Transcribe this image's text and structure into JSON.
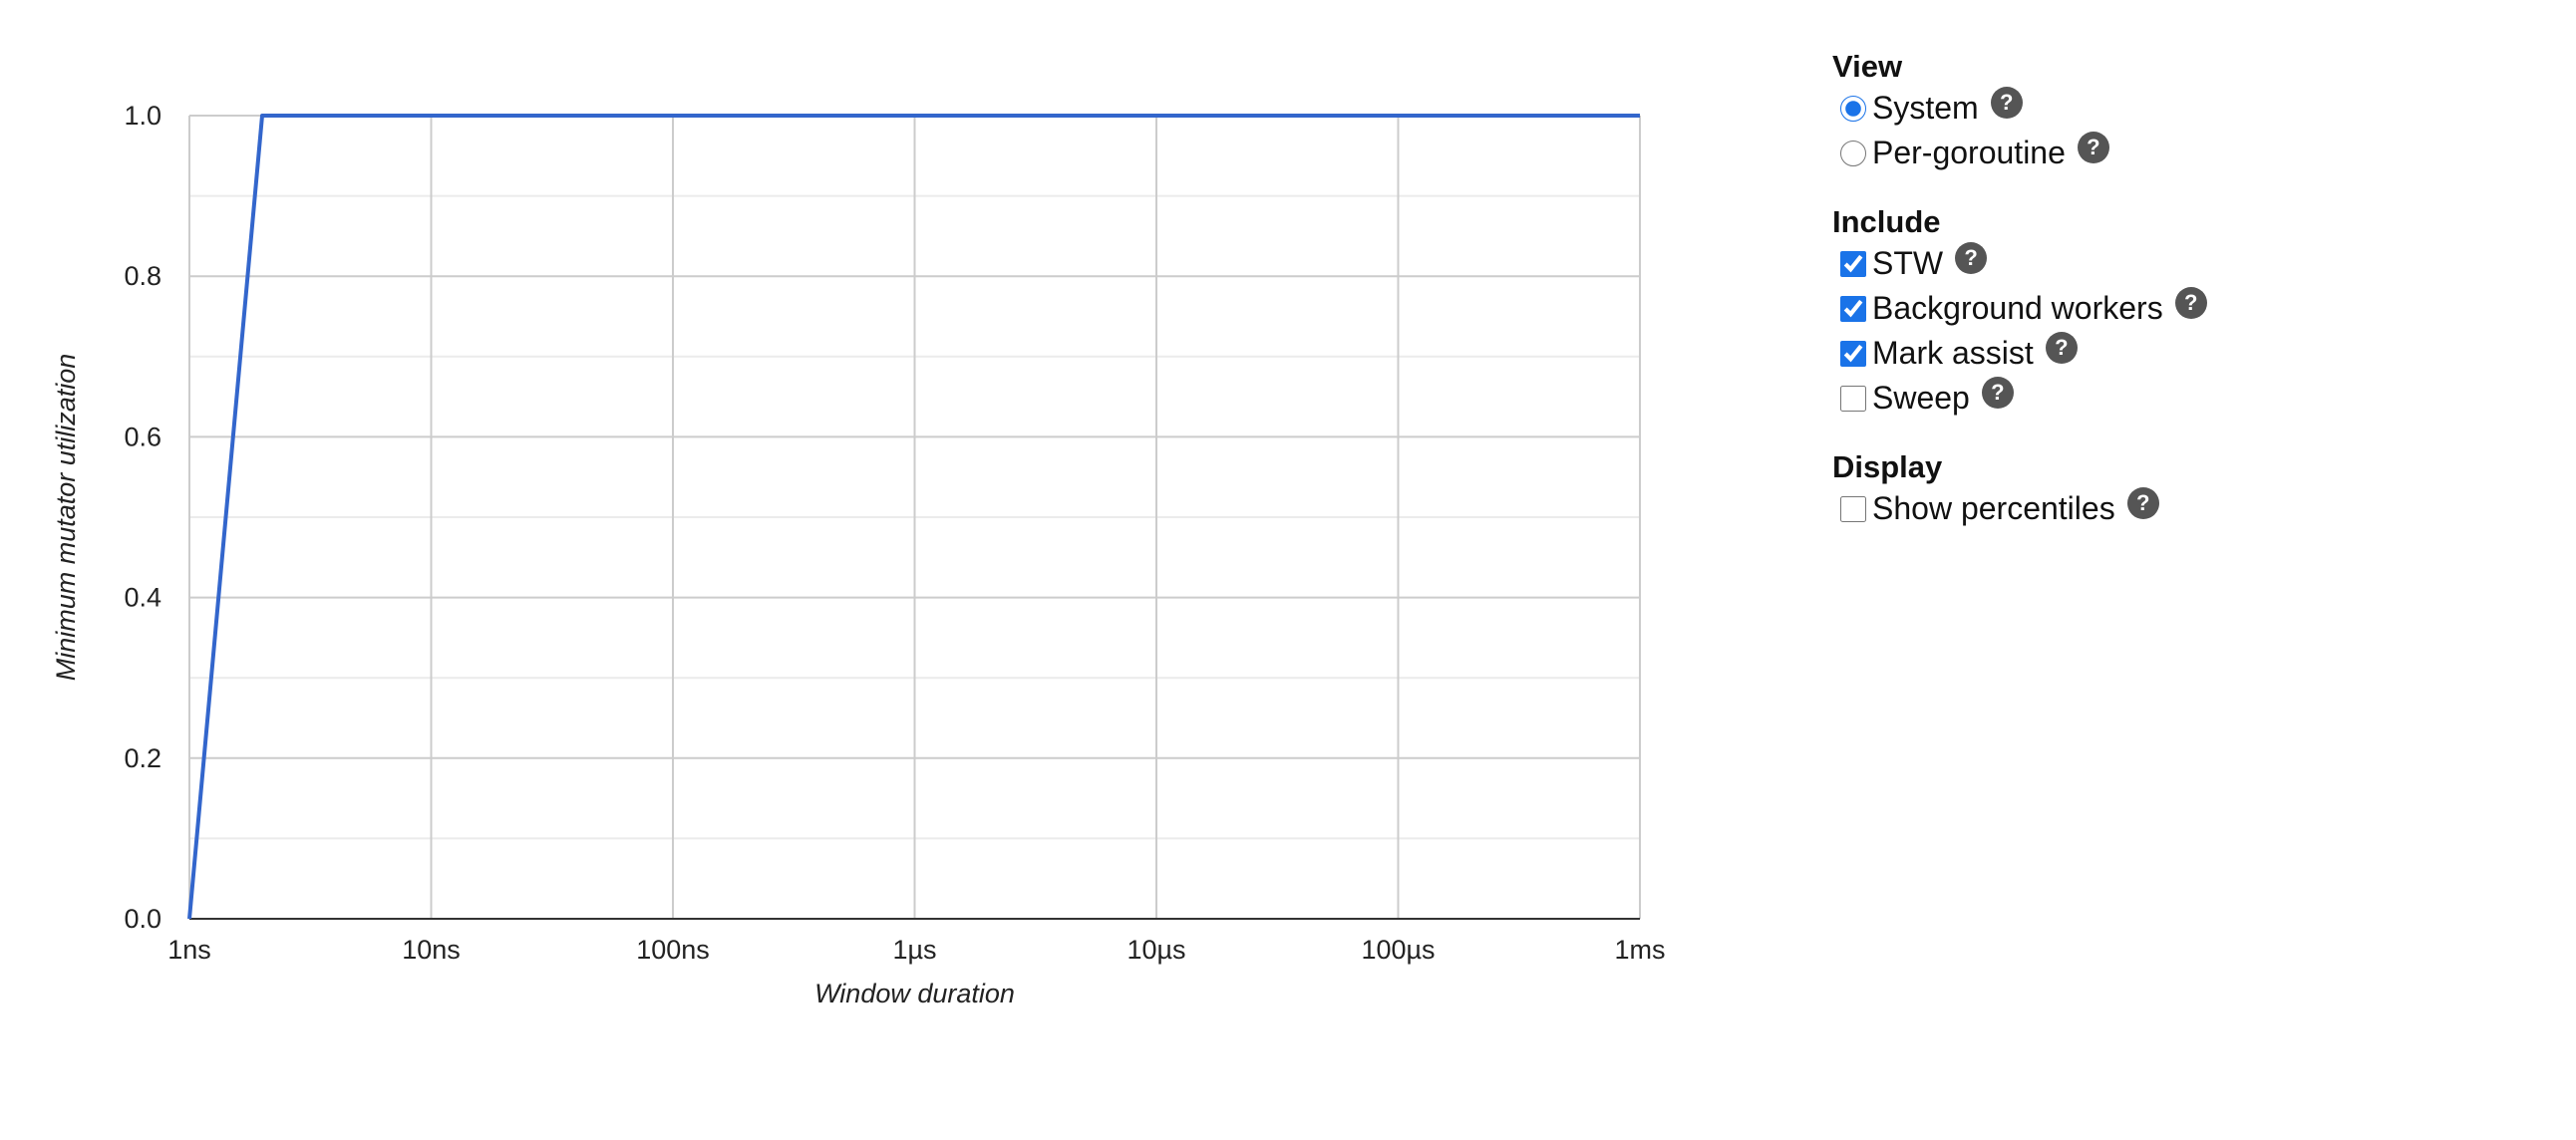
{
  "chart_data": {
    "type": "line",
    "xscale": "log",
    "xlabel": "Window duration",
    "ylabel": "Minimum mutator utilization",
    "x_ticks": [
      {
        "value": 1e-09,
        "label": "1ns"
      },
      {
        "value": 1e-08,
        "label": "10ns"
      },
      {
        "value": 1e-07,
        "label": "100ns"
      },
      {
        "value": 1e-06,
        "label": "1µs"
      },
      {
        "value": 1e-05,
        "label": "10µs"
      },
      {
        "value": 0.0001,
        "label": "100µs"
      },
      {
        "value": 0.001,
        "label": "1ms"
      }
    ],
    "y_ticks": [
      {
        "value": 0,
        "label": "0.0"
      },
      {
        "value": 0.2,
        "label": "0.2"
      },
      {
        "value": 0.4,
        "label": "0.4"
      },
      {
        "value": 0.6,
        "label": "0.6"
      },
      {
        "value": 0.8,
        "label": "0.8"
      },
      {
        "value": 1,
        "label": "1.0"
      }
    ],
    "xlim": [
      1e-09,
      0.001
    ],
    "ylim": [
      0,
      1
    ],
    "grid": true,
    "series": [
      {
        "color": "#3366cc",
        "points": [
          {
            "x": 1e-09,
            "y": 0
          },
          {
            "x": 2e-09,
            "y": 1
          },
          {
            "x": 0.001,
            "y": 1
          }
        ]
      }
    ]
  },
  "controls": {
    "view": {
      "title": "View",
      "options": [
        {
          "label": "System",
          "checked": true
        },
        {
          "label": "Per-goroutine",
          "checked": false
        }
      ]
    },
    "include": {
      "title": "Include",
      "options": [
        {
          "label": "STW",
          "checked": true
        },
        {
          "label": "Background workers",
          "checked": true
        },
        {
          "label": "Mark assist",
          "checked": true
        },
        {
          "label": "Sweep",
          "checked": false
        }
      ]
    },
    "display": {
      "title": "Display",
      "options": [
        {
          "label": "Show percentiles",
          "checked": false
        }
      ]
    },
    "help_glyph": "?"
  }
}
